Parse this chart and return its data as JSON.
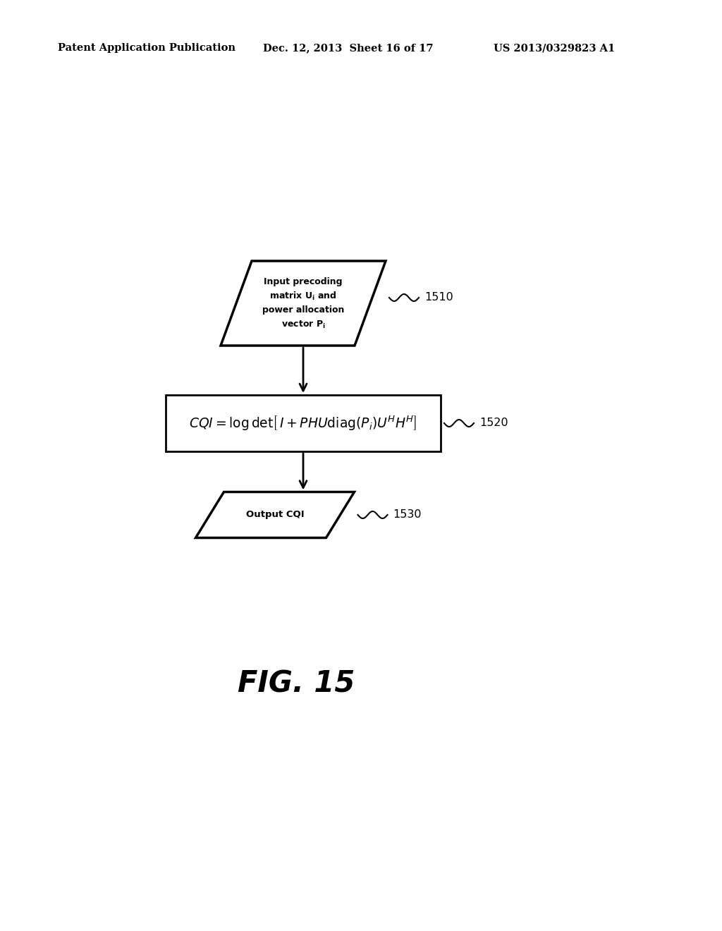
{
  "bg_color": "#ffffff",
  "header_left": "Patent Application Publication",
  "header_mid": "Dec. 12, 2013  Sheet 16 of 17",
  "header_right": "US 2013/0329823 A1",
  "fig_label": "FIG. 15",
  "box1_ref": "1510",
  "box2_ref": "1520",
  "box3_ref": "1530",
  "box3_label": "Output CQI"
}
